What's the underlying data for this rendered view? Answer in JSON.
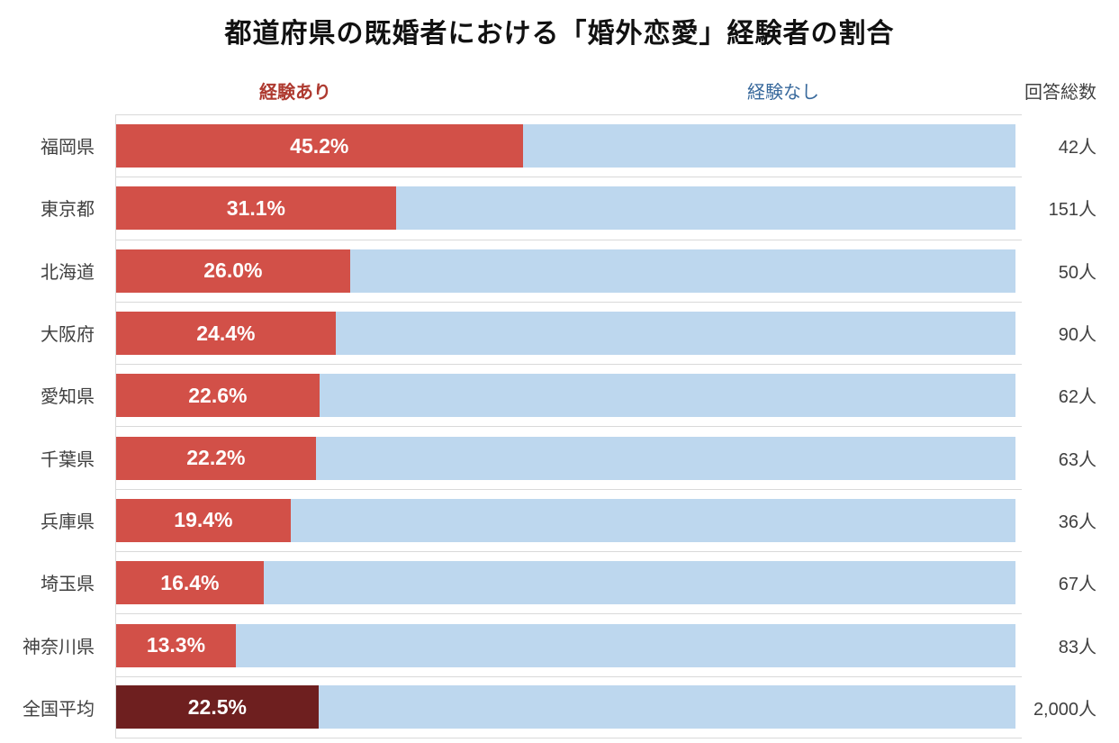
{
  "colors": {
    "bar_red": "#d25048",
    "bar_blue": "#bdd7ee",
    "bar_dark": "#6e1f1f",
    "legend_red": "#ae3a30",
    "legend_blue": "#38699c",
    "grid": "#d9d9d9",
    "value_text": "#ffffff",
    "label_text": "#404040"
  },
  "legend": {
    "experienced": "経験あり",
    "not_experienced": "経験なし",
    "total_responses": "回答総数"
  },
  "chart_data": {
    "type": "bar",
    "orientation": "horizontal",
    "stacked": true,
    "title": "都道府県の既婚者における「婚外恋愛」経験者の割合",
    "categories": [
      "福岡県",
      "東京都",
      "北海道",
      "大阪府",
      "愛知県",
      "千葉県",
      "兵庫県",
      "埼玉県",
      "神奈川県",
      "全国平均"
    ],
    "series": [
      {
        "name": "経験あり",
        "values": [
          45.2,
          31.1,
          26.0,
          24.4,
          22.6,
          22.2,
          19.4,
          16.4,
          13.3,
          22.5
        ]
      },
      {
        "name": "経験なし",
        "values": [
          54.8,
          68.9,
          74.0,
          75.6,
          77.4,
          77.8,
          80.6,
          83.6,
          86.7,
          77.5
        ]
      }
    ],
    "totals": [
      "42人",
      "151人",
      "50人",
      "90人",
      "62人",
      "63人",
      "36人",
      "67人",
      "83人",
      "2,000人"
    ],
    "xlim": [
      0,
      100
    ],
    "grid": "category-separators-only",
    "legend_position": "top",
    "highlight_category": "全国平均"
  },
  "rows": [
    {
      "label": "福岡県",
      "pct": 45.2,
      "pct_label": "45.2%",
      "total": "42人"
    },
    {
      "label": "東京都",
      "pct": 31.1,
      "pct_label": "31.1%",
      "total": "151人"
    },
    {
      "label": "北海道",
      "pct": 26.0,
      "pct_label": "26.0%",
      "total": "50人"
    },
    {
      "label": "大阪府",
      "pct": 24.4,
      "pct_label": "24.4%",
      "total": "90人"
    },
    {
      "label": "愛知県",
      "pct": 22.6,
      "pct_label": "22.6%",
      "total": "62人"
    },
    {
      "label": "千葉県",
      "pct": 22.2,
      "pct_label": "22.2%",
      "total": "63人"
    },
    {
      "label": "兵庫県",
      "pct": 19.4,
      "pct_label": "19.4%",
      "total": "36人"
    },
    {
      "label": "埼玉県",
      "pct": 16.4,
      "pct_label": "16.4%",
      "total": "67人"
    },
    {
      "label": "神奈川県",
      "pct": 13.3,
      "pct_label": "13.3%",
      "total": "83人"
    },
    {
      "label": "全国平均",
      "pct": 22.5,
      "pct_label": "22.5%",
      "total": "2,000人"
    }
  ]
}
